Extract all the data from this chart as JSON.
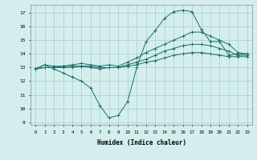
{
  "title": "",
  "xlabel": "Humidex (Indice chaleur)",
  "xlim": [
    -0.5,
    23.5
  ],
  "ylim": [
    8.8,
    17.6
  ],
  "yticks": [
    9,
    10,
    11,
    12,
    13,
    14,
    15,
    16,
    17
  ],
  "xticks": [
    0,
    1,
    2,
    3,
    4,
    5,
    6,
    7,
    8,
    9,
    10,
    11,
    12,
    13,
    14,
    15,
    16,
    17,
    18,
    19,
    20,
    21,
    22,
    23
  ],
  "bg_color": "#d4eeee",
  "grid_color": "#aacccc",
  "line_color": "#1a6e68",
  "series": [
    {
      "x": [
        0,
        1,
        2,
        3,
        4,
        5,
        6,
        7,
        8,
        9,
        10,
        11,
        12,
        13,
        14,
        15,
        16,
        17,
        18,
        19,
        20,
        21,
        22,
        23
      ],
      "y": [
        12.9,
        13.2,
        12.9,
        12.6,
        12.3,
        12.0,
        11.5,
        10.2,
        9.3,
        9.5,
        10.5,
        13.0,
        14.9,
        15.7,
        16.6,
        17.1,
        17.2,
        17.1,
        15.8,
        14.9,
        14.9,
        13.9,
        14.0,
        14.0
      ]
    },
    {
      "x": [
        0,
        1,
        2,
        3,
        4,
        5,
        6,
        7,
        8,
        9,
        10,
        11,
        12,
        13,
        14,
        15,
        16,
        17,
        18,
        19,
        20,
        21,
        22,
        23
      ],
      "y": [
        12.9,
        13.2,
        13.1,
        13.1,
        13.2,
        13.3,
        13.2,
        13.1,
        13.2,
        13.1,
        13.4,
        13.7,
        14.1,
        14.4,
        14.7,
        15.0,
        15.3,
        15.6,
        15.6,
        15.3,
        15.0,
        14.7,
        14.1,
        14.0
      ]
    },
    {
      "x": [
        0,
        1,
        2,
        3,
        4,
        5,
        6,
        7,
        8,
        9,
        10,
        11,
        12,
        13,
        14,
        15,
        16,
        17,
        18,
        19,
        20,
        21,
        22,
        23
      ],
      "y": [
        12.9,
        13.0,
        13.0,
        13.1,
        13.1,
        13.1,
        13.1,
        13.0,
        13.0,
        13.0,
        13.2,
        13.4,
        13.6,
        13.9,
        14.2,
        14.4,
        14.6,
        14.7,
        14.7,
        14.6,
        14.4,
        14.2,
        13.9,
        13.9
      ]
    },
    {
      "x": [
        0,
        1,
        2,
        3,
        4,
        5,
        6,
        7,
        8,
        9,
        10,
        11,
        12,
        13,
        14,
        15,
        16,
        17,
        18,
        19,
        20,
        21,
        22,
        23
      ],
      "y": [
        12.9,
        13.0,
        13.0,
        13.0,
        13.0,
        13.1,
        13.0,
        12.9,
        13.0,
        13.0,
        13.1,
        13.2,
        13.4,
        13.5,
        13.7,
        13.9,
        14.0,
        14.1,
        14.1,
        14.0,
        13.9,
        13.8,
        13.8,
        13.8
      ]
    }
  ]
}
